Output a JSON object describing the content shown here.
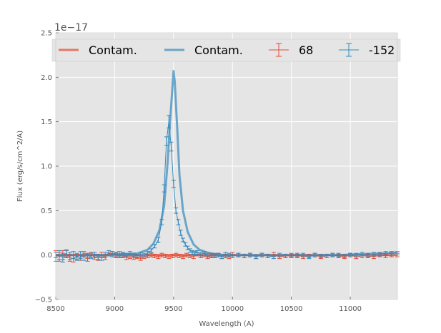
{
  "chart_data": {
    "type": "line",
    "xlabel": "Wavelength (A)",
    "ylabel": "Flux (erg/s/cm^2/A)",
    "y_offset_label": "1e−17",
    "xlim": [
      8500,
      11400
    ],
    "ylim": [
      -0.5,
      2.5
    ],
    "x_ticks": [
      8500,
      9000,
      9500,
      10000,
      10500,
      11000
    ],
    "y_ticks": [
      -0.5,
      0.0,
      0.5,
      1.0,
      1.5,
      2.0,
      2.5
    ],
    "x_tick_labels": [
      "8500",
      "9000",
      "9500",
      "10000",
      "10500",
      "11000"
    ],
    "y_tick_labels": [
      "−0.5",
      "0.0",
      "0.5",
      "1.0",
      "1.5",
      "2.0",
      "2.5"
    ],
    "grid": true,
    "legend_position": "top",
    "colors": {
      "red": "#e24a33",
      "blue": "#348abd",
      "plot_bg": "#e5e5e5",
      "grid": "#ffffff"
    },
    "series": [
      {
        "name": "Contam.",
        "kind": "line",
        "color": "#e24a33",
        "x": [
          8500,
          8600,
          8700,
          8800,
          8900,
          9000,
          9100,
          9200,
          9300,
          9400,
          9500,
          9600,
          9700,
          9800,
          9900,
          10000,
          10200,
          10400,
          10600,
          10800,
          11000,
          11200,
          11400
        ],
        "y": [
          0.0,
          0.0,
          0.0,
          0.0,
          0.0,
          0.0,
          0.0,
          0.0,
          0.0,
          0.0,
          0.0,
          0.0,
          0.0,
          0.0,
          0.0,
          0.0,
          0.0,
          0.0,
          0.0,
          0.0,
          0.0,
          0.0,
          0.0
        ]
      },
      {
        "name": "Contam.",
        "kind": "line",
        "color": "#348abd",
        "x": [
          8500,
          8600,
          8700,
          8800,
          8900,
          9000,
          9100,
          9200,
          9280,
          9330,
          9380,
          9420,
          9450,
          9470,
          9490,
          9500,
          9510,
          9530,
          9550,
          9580,
          9620,
          9670,
          9720,
          9780,
          9850,
          9950,
          10100,
          10300,
          10500,
          10700,
          10900,
          11100,
          11300,
          11400
        ],
        "y": [
          0.0,
          0.0,
          0.0,
          0.0,
          0.0,
          0.01,
          0.01,
          0.02,
          0.06,
          0.13,
          0.28,
          0.55,
          1.05,
          1.5,
          1.88,
          2.07,
          1.95,
          1.45,
          0.9,
          0.5,
          0.26,
          0.12,
          0.06,
          0.03,
          0.01,
          0.0,
          0.0,
          0.0,
          0.0,
          0.0,
          0.0,
          0.01,
          0.02,
          0.03
        ]
      },
      {
        "name": "68",
        "kind": "errorbar",
        "color": "#e24a33",
        "x": [
          8500,
          8530,
          8560,
          8590,
          8620,
          8650,
          8680,
          8710,
          8740,
          8770,
          8800,
          8830,
          8860,
          8890,
          8920,
          8950,
          8980,
          9010,
          9040,
          9070,
          9100,
          9130,
          9160,
          9190,
          9220,
          9250,
          9280,
          9310,
          9340,
          9370,
          9400,
          9430,
          9460,
          9490,
          9520,
          9550,
          9580,
          9610,
          9640,
          9670,
          9700,
          9730,
          9760,
          9790,
          9820,
          9850,
          9880,
          9910,
          9940,
          9970,
          10000,
          10050,
          10100,
          10150,
          10200,
          10250,
          10300,
          10350,
          10400,
          10450,
          10500,
          10550,
          10600,
          10650,
          10700,
          10750,
          10800,
          10850,
          10900,
          10950,
          11000,
          11050,
          11100,
          11150,
          11200,
          11250,
          11300,
          11350,
          11400
        ],
        "y": [
          0.01,
          -0.02,
          0.0,
          0.02,
          -0.03,
          -0.04,
          -0.02,
          -0.03,
          0.01,
          -0.01,
          0.0,
          -0.02,
          -0.03,
          0.0,
          -0.02,
          0.01,
          0.02,
          0.0,
          -0.01,
          0.0,
          -0.03,
          -0.02,
          -0.03,
          -0.02,
          -0.04,
          -0.02,
          -0.01,
          0.0,
          -0.01,
          -0.02,
          0.0,
          -0.01,
          -0.02,
          -0.01,
          0.0,
          -0.01,
          -0.02,
          0.0,
          -0.01,
          -0.02,
          0.01,
          -0.01,
          0.0,
          -0.02,
          0.0,
          -0.01,
          0.0,
          -0.02,
          -0.01,
          -0.02,
          0.01,
          0.0,
          -0.01,
          0.0,
          -0.02,
          0.0,
          -0.01,
          0.01,
          -0.02,
          -0.01,
          -0.01,
          0.0,
          -0.02,
          -0.01,
          0.0,
          -0.02,
          -0.01,
          0.0,
          -0.01,
          -0.02,
          0.0,
          -0.02,
          -0.01,
          -0.01,
          -0.02,
          0.0,
          -0.01,
          0.0,
          0.0
        ],
        "err": [
          0.04,
          0.05,
          0.05,
          0.04,
          0.04,
          0.04,
          0.03,
          0.03,
          0.03,
          0.03,
          0.03,
          0.03,
          0.03,
          0.03,
          0.03,
          0.02,
          0.02,
          0.02,
          0.02,
          0.02,
          0.02,
          0.02,
          0.02,
          0.02,
          0.02,
          0.02,
          0.02,
          0.02,
          0.02,
          0.02,
          0.02,
          0.02,
          0.02,
          0.02,
          0.02,
          0.02,
          0.02,
          0.02,
          0.02,
          0.02,
          0.02,
          0.02,
          0.02,
          0.02,
          0.02,
          0.02,
          0.02,
          0.02,
          0.02,
          0.02,
          0.02,
          0.02,
          0.02,
          0.02,
          0.02,
          0.02,
          0.02,
          0.02,
          0.02,
          0.02,
          0.02,
          0.02,
          0.02,
          0.02,
          0.02,
          0.02,
          0.02,
          0.02,
          0.02,
          0.02,
          0.02,
          0.02,
          0.02,
          0.02,
          0.02,
          0.02,
          0.02,
          0.02,
          0.02
        ]
      },
      {
        "name": "-152",
        "kind": "errorbar",
        "color": "#348abd",
        "x": [
          8500,
          8530,
          8560,
          8590,
          8620,
          8650,
          8680,
          8710,
          8740,
          8770,
          8800,
          8830,
          8860,
          8890,
          8920,
          8950,
          8980,
          9010,
          9040,
          9070,
          9100,
          9130,
          9160,
          9190,
          9220,
          9250,
          9280,
          9310,
          9340,
          9370,
          9400,
          9420,
          9440,
          9460,
          9480,
          9500,
          9520,
          9540,
          9560,
          9580,
          9600,
          9620,
          9640,
          9660,
          9680,
          9700,
          9730,
          9760,
          9790,
          9820,
          9850,
          9880,
          9910,
          9940,
          9970,
          10000,
          10050,
          10100,
          10150,
          10200,
          10250,
          10300,
          10350,
          10400,
          10450,
          10500,
          10550,
          10600,
          10650,
          10700,
          10750,
          10800,
          10850,
          10900,
          10950,
          11000,
          11050,
          11100,
          11150,
          11200,
          11250,
          11300,
          11350,
          11400
        ],
        "y": [
          -0.02,
          0.0,
          -0.03,
          0.01,
          -0.01,
          0.0,
          -0.02,
          0.0,
          -0.02,
          -0.03,
          -0.01,
          0.0,
          -0.02,
          -0.03,
          0.0,
          0.02,
          0.01,
          0.0,
          0.01,
          0.0,
          0.0,
          0.02,
          0.0,
          -0.01,
          0.01,
          0.0,
          0.02,
          0.05,
          0.1,
          0.17,
          0.37,
          0.75,
          1.28,
          1.5,
          1.22,
          0.8,
          0.5,
          0.37,
          0.25,
          0.17,
          0.12,
          0.08,
          0.05,
          0.03,
          0.02,
          0.03,
          0.01,
          0.02,
          0.0,
          -0.01,
          0.0,
          0.0,
          -0.02,
          0.01,
          0.0,
          -0.01,
          0.0,
          -0.01,
          0.0,
          -0.02,
          0.0,
          -0.01,
          -0.02,
          0.0,
          -0.01,
          0.0,
          -0.01,
          0.0,
          -0.02,
          0.0,
          -0.01,
          -0.01,
          0.0,
          0.0,
          -0.01,
          0.0,
          0.0,
          0.01,
          0.0,
          0.01,
          0.01,
          0.02,
          0.02,
          0.02
        ],
        "err": [
          0.05,
          0.05,
          0.05,
          0.04,
          0.04,
          0.04,
          0.04,
          0.04,
          0.04,
          0.04,
          0.03,
          0.03,
          0.03,
          0.03,
          0.03,
          0.03,
          0.03,
          0.03,
          0.03,
          0.03,
          0.02,
          0.02,
          0.02,
          0.02,
          0.02,
          0.02,
          0.02,
          0.02,
          0.02,
          0.03,
          0.03,
          0.04,
          0.05,
          0.07,
          0.05,
          0.04,
          0.03,
          0.03,
          0.03,
          0.02,
          0.02,
          0.02,
          0.02,
          0.02,
          0.02,
          0.02,
          0.02,
          0.02,
          0.02,
          0.02,
          0.02,
          0.02,
          0.02,
          0.02,
          0.02,
          0.02,
          0.02,
          0.02,
          0.02,
          0.02,
          0.02,
          0.02,
          0.02,
          0.02,
          0.02,
          0.02,
          0.02,
          0.02,
          0.02,
          0.02,
          0.02,
          0.02,
          0.02,
          0.02,
          0.02,
          0.02,
          0.02,
          0.02,
          0.02,
          0.02,
          0.02,
          0.02,
          0.02,
          0.02
        ]
      }
    ]
  }
}
